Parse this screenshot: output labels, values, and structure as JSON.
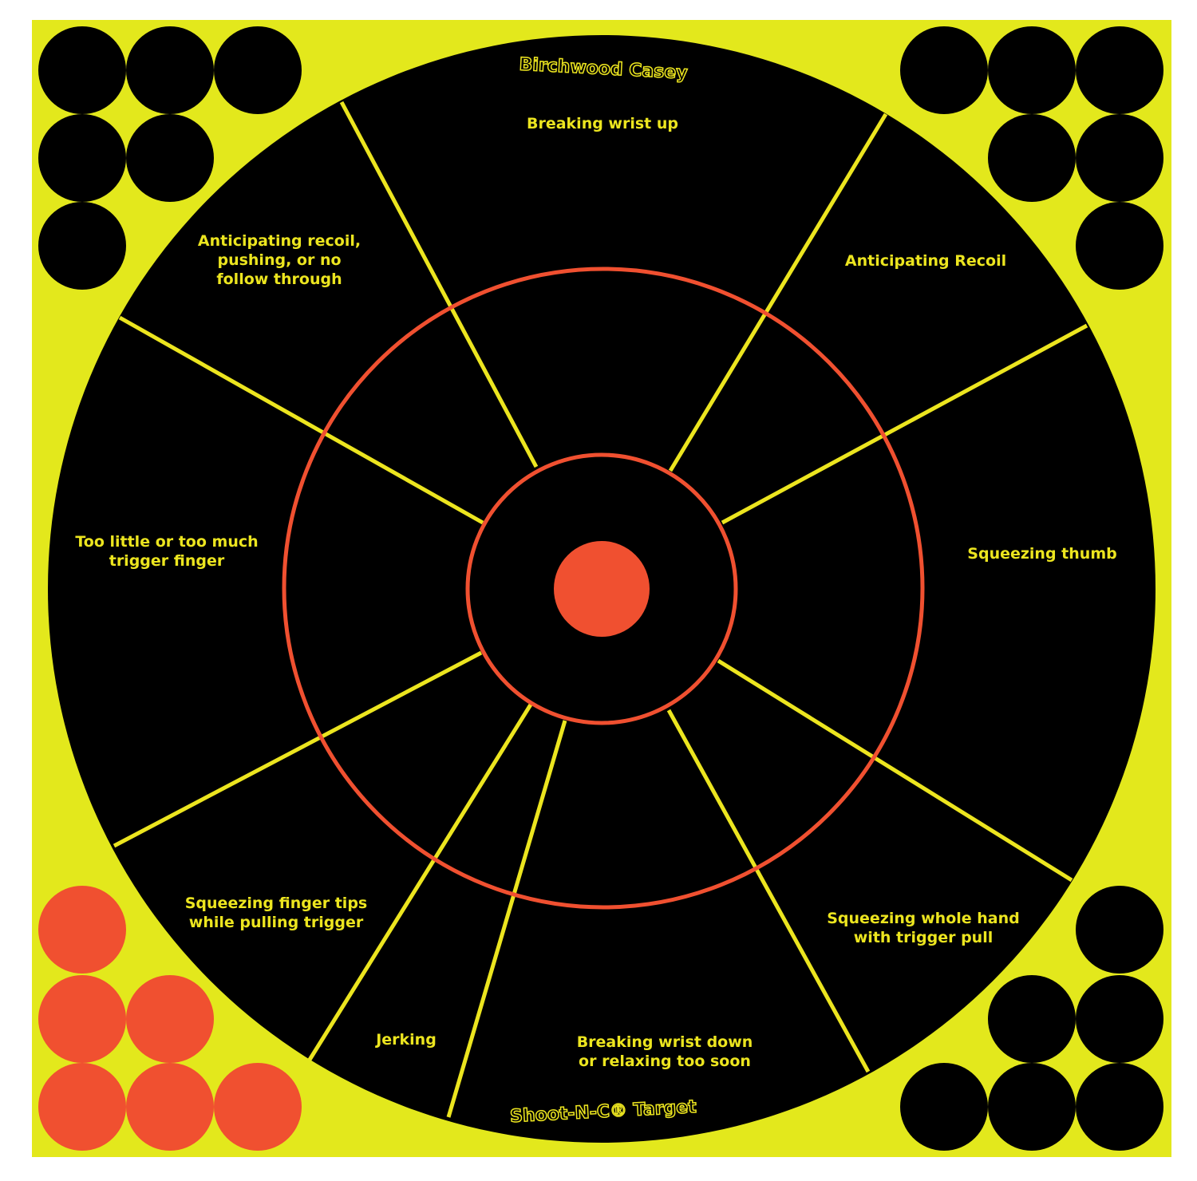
{
  "brand": "Birchwood Casey",
  "product": "Shoot-N-C® Target",
  "colors": {
    "background": "#ffffff",
    "sheet": "#e3e81c",
    "target": "#000000",
    "rings": "#f05030",
    "spokes": "#ece51f",
    "text": "#ece51f",
    "pasters_orange": "#f05030"
  },
  "labels": [
    {
      "lines": [
        "Breaking wrist up"
      ]
    },
    {
      "lines": [
        "Anticipating Recoil"
      ]
    },
    {
      "lines": [
        "Squeezing thumb"
      ]
    },
    {
      "lines": [
        "Squeezing whole hand",
        "with trigger pull"
      ]
    },
    {
      "lines": [
        "Breaking wrist down",
        "or relaxing too soon"
      ]
    },
    {
      "lines": [
        "Jerking"
      ]
    },
    {
      "lines": [
        "Squeezing finger tips",
        "while pulling trigger"
      ]
    },
    {
      "lines": [
        "Too little or too much",
        "trigger finger"
      ]
    },
    {
      "lines": [
        "Anticipating recoil,",
        "pushing, or no",
        "follow through"
      ]
    }
  ]
}
